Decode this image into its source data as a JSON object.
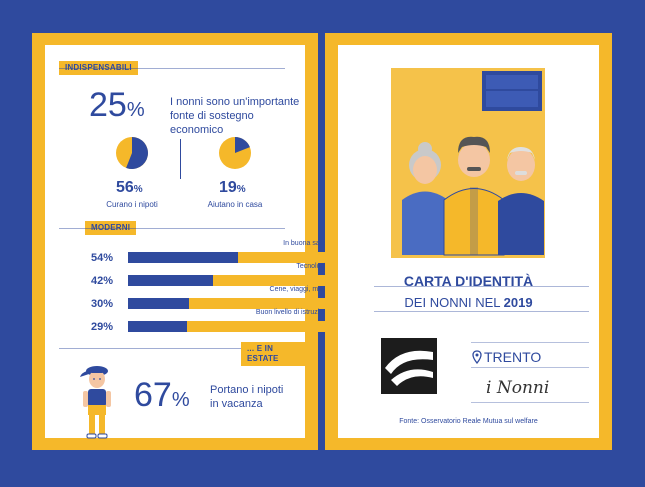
{
  "left": {
    "section1_tag": "INDISPENSABILI",
    "stat_big": {
      "value": "25",
      "unit": "%"
    },
    "stat_big_text_1": "I nonni sono un'importante",
    "stat_big_text_2": "fonte di sostegno economico",
    "pie1": {
      "value": "56",
      "unit": "%",
      "caption": "Curano i nipoti",
      "fraction": 0.56
    },
    "pie2": {
      "value": "19",
      "unit": "%",
      "caption": "Aiutano in casa",
      "fraction": 0.19
    },
    "section2_tag": "MODERNI",
    "bars": [
      {
        "pct": "54%",
        "label": "In buona salute",
        "value": 54
      },
      {
        "pct": "42%",
        "label": "Tecnologici",
        "value": 42
      },
      {
        "pct": "30%",
        "label": "Cene, viaggi, musei",
        "value": 30
      },
      {
        "pct": "29%",
        "label": "Buon livello di istruzione",
        "value": 29
      }
    ],
    "section3_tag": "... E IN ESTATE",
    "stat_summer": {
      "value": "67",
      "unit": "%"
    },
    "summer_text_1": "Portano i nipoti",
    "summer_text_2": "in vacanza"
  },
  "right": {
    "title": "CARTA D'IDENTITÀ",
    "subtitle_prefix": "DEI NONNI NEL",
    "subtitle_year": "2019",
    "location": "TRENTO",
    "signature": "i Nonni",
    "source": "Fonte: Osservatorio Reale Mutua sul welfare"
  },
  "colors": {
    "blue": "#2f4a9e",
    "yellow": "#f5b82a"
  }
}
